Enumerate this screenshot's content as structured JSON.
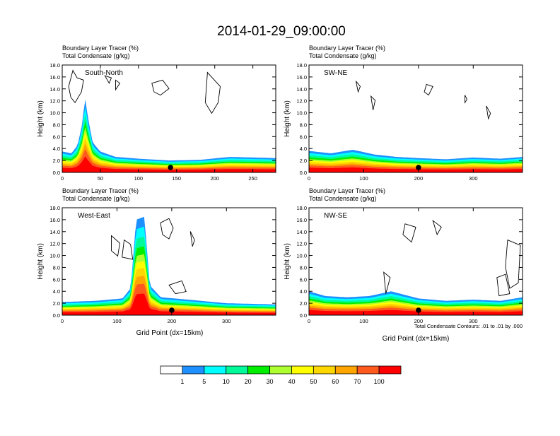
{
  "title": "2014-01-29_09:00:00",
  "colors": {
    "cb": [
      "#ffffff",
      "#1e90ff",
      "#00ffff",
      "#00fa9a",
      "#00ee00",
      "#adff2f",
      "#ffff00",
      "#ffd700",
      "#ffa500",
      "#ff5a1e",
      "#ff0000"
    ],
    "contour": "#000000"
  },
  "chart_data": [
    {
      "type": "heatmap",
      "name": "South-North cross section",
      "label": "South-North",
      "header_line1": "Boundary Layer Tracer   (%)",
      "header_line2": "Total Condensate   (g/kg)",
      "ylabel": "Height (km)",
      "xlabel": "",
      "xlim": [
        0,
        280
      ],
      "ylim": [
        0,
        18
      ],
      "xticks": [
        0,
        50,
        100,
        150,
        200,
        250
      ],
      "yticks": [
        "0.0",
        "2.0",
        "4.0",
        "6.0",
        "8.0",
        "10.0",
        "12.0",
        "14.0",
        "16.0",
        "18.0"
      ],
      "marker_x": 142,
      "tracer_profile": [
        [
          0,
          3.5
        ],
        [
          12,
          3.2
        ],
        [
          20,
          4.5
        ],
        [
          26,
          8
        ],
        [
          30,
          12.5
        ],
        [
          34,
          9
        ],
        [
          40,
          5
        ],
        [
          50,
          3.5
        ],
        [
          70,
          2.6
        ],
        [
          100,
          2.3
        ],
        [
          140,
          2.0
        ],
        [
          180,
          2.1
        ],
        [
          220,
          2.6
        ],
        [
          250,
          2.5
        ],
        [
          280,
          2.4
        ]
      ]
    },
    {
      "type": "heatmap",
      "name": "SW-NE cross section",
      "label": "SW-NE",
      "header_line1": "Boundary Layer Tracer   (%)",
      "header_line2": "Total Condensate   (g/kg)",
      "ylabel": "Height (km)",
      "xlabel": "",
      "xlim": [
        0,
        390
      ],
      "ylim": [
        0,
        18
      ],
      "xticks": [
        0,
        100,
        200,
        300
      ],
      "yticks": [
        "0.0",
        "2.0",
        "4.0",
        "6.0",
        "8.0",
        "10.0",
        "12.0",
        "14.0",
        "16.0",
        "18.0"
      ],
      "marker_x": 200,
      "tracer_profile": [
        [
          0,
          3.6
        ],
        [
          40,
          3.2
        ],
        [
          80,
          3.8
        ],
        [
          120,
          3.0
        ],
        [
          160,
          2.6
        ],
        [
          200,
          2.4
        ],
        [
          250,
          2.2
        ],
        [
          300,
          2.5
        ],
        [
          350,
          2.3
        ],
        [
          390,
          2.6
        ]
      ]
    },
    {
      "type": "heatmap",
      "name": "West-East cross section",
      "label": "West-East",
      "header_line1": "Boundary Layer Tracer   (%)",
      "header_line2": "Total Condensate   (g/kg)",
      "ylabel": "Height (km)",
      "xlabel": "Grid Point (dx=15km)",
      "xlim": [
        0,
        390
      ],
      "ylim": [
        0,
        18
      ],
      "xticks": [
        0,
        100,
        200,
        300
      ],
      "yticks": [
        "0.0",
        "2.0",
        "4.0",
        "6.0",
        "8.0",
        "10.0",
        "12.0",
        "14.0",
        "16.0",
        "18.0"
      ],
      "marker_x": 200,
      "tracer_profile": [
        [
          0,
          2.2
        ],
        [
          60,
          2.4
        ],
        [
          110,
          2.8
        ],
        [
          125,
          4.5
        ],
        [
          135,
          16
        ],
        [
          150,
          16.5
        ],
        [
          160,
          5
        ],
        [
          180,
          3.0
        ],
        [
          230,
          2.6
        ],
        [
          300,
          2.0
        ],
        [
          390,
          1.8
        ]
      ]
    },
    {
      "type": "heatmap",
      "name": "NW-SE cross section",
      "label": "NW-SE",
      "header_line1": "Boundary Layer Tracer   (%)",
      "header_line2": "Total Condensate   (g/kg)",
      "ylabel": "Height (km)",
      "xlabel": "Grid Point (dx=15km)",
      "xlim": [
        0,
        390
      ],
      "ylim": [
        0,
        18
      ],
      "xticks": [
        0,
        100,
        200,
        300
      ],
      "yticks": [
        "0.0",
        "2.0",
        "4.0",
        "6.0",
        "8.0",
        "10.0",
        "12.0",
        "14.0",
        "16.0",
        "18.0"
      ],
      "marker_x": 200,
      "tracer_profile": [
        [
          0,
          4.0
        ],
        [
          30,
          3.2
        ],
        [
          70,
          3.0
        ],
        [
          110,
          3.2
        ],
        [
          150,
          4.0
        ],
        [
          200,
          2.8
        ],
        [
          250,
          2.4
        ],
        [
          300,
          2.6
        ],
        [
          350,
          2.4
        ],
        [
          390,
          3.0
        ]
      ],
      "note": "Total Condensate Contours: .01 to .01 by .000"
    }
  ],
  "colorbar": {
    "labels": [
      "1",
      "5",
      "10",
      "20",
      "30",
      "40",
      "50",
      "60",
      "70",
      "100"
    ]
  }
}
